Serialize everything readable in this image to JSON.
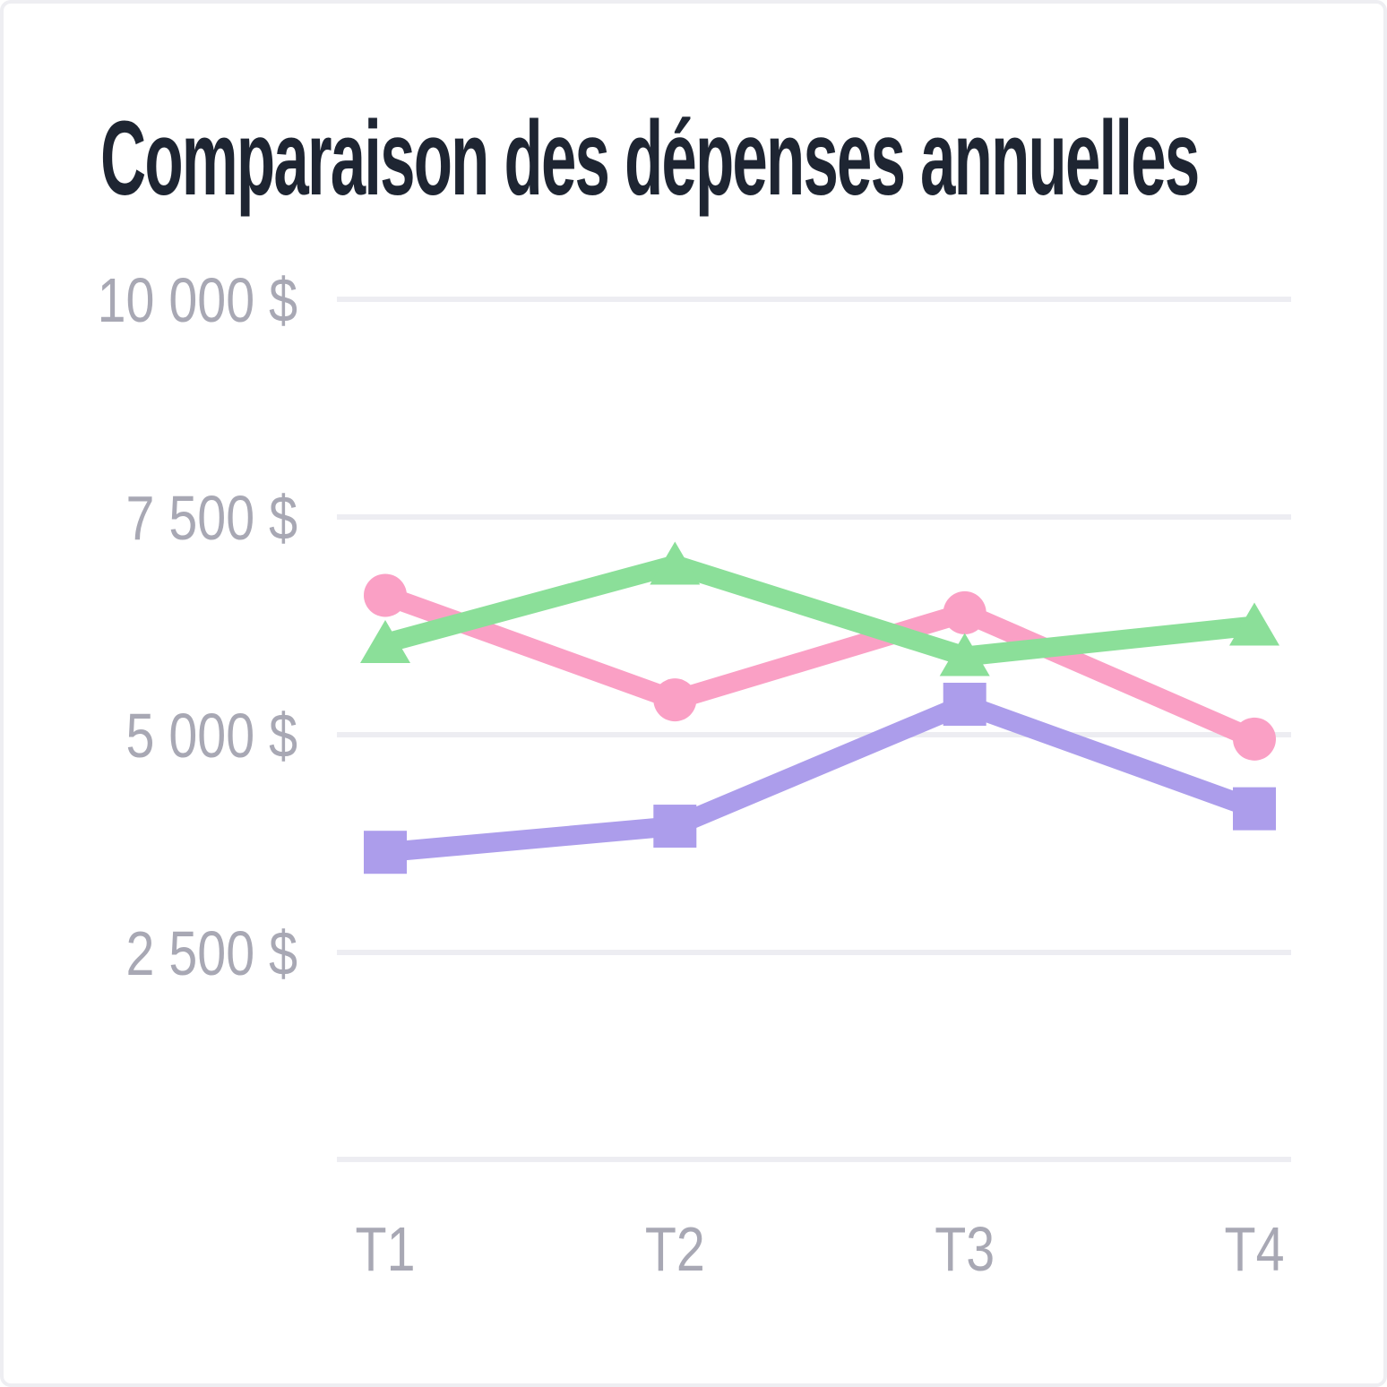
{
  "chart_data": {
    "type": "line",
    "title": "Comparaison des dépenses annuelles",
    "categories": [
      "T1",
      "T2",
      "T3",
      "T4"
    ],
    "series": [
      {
        "name": "pink-circles",
        "marker": "circle",
        "color": "#FAA0C5",
        "values": [
          6600,
          5400,
          6400,
          4950
        ]
      },
      {
        "name": "green-triangles",
        "marker": "triangle",
        "color": "#8BDF99",
        "values": [
          6050,
          6950,
          5900,
          6250
        ]
      },
      {
        "name": "purple-squares",
        "marker": "square",
        "color": "#AC9DEB",
        "values": [
          3650,
          3950,
          5350,
          4150
        ]
      }
    ],
    "yticks": [
      {
        "value": 10000,
        "label": "10 000 $"
      },
      {
        "value": 7500,
        "label": "7 500 $"
      },
      {
        "value": 5000,
        "label": "5 000 $"
      },
      {
        "value": 2500,
        "label": "2 500 $"
      }
    ],
    "ylim": [
      0,
      10000
    ],
    "xlabel": "",
    "ylabel": "",
    "grid": true,
    "legend": false,
    "style": {
      "title_color": "#1E2532",
      "label_color": "#A8A8B4",
      "grid_color": "#EDEDF2",
      "background": "#FFFFFF",
      "border_color": "#EEEEF2",
      "line_width": 22
    }
  }
}
